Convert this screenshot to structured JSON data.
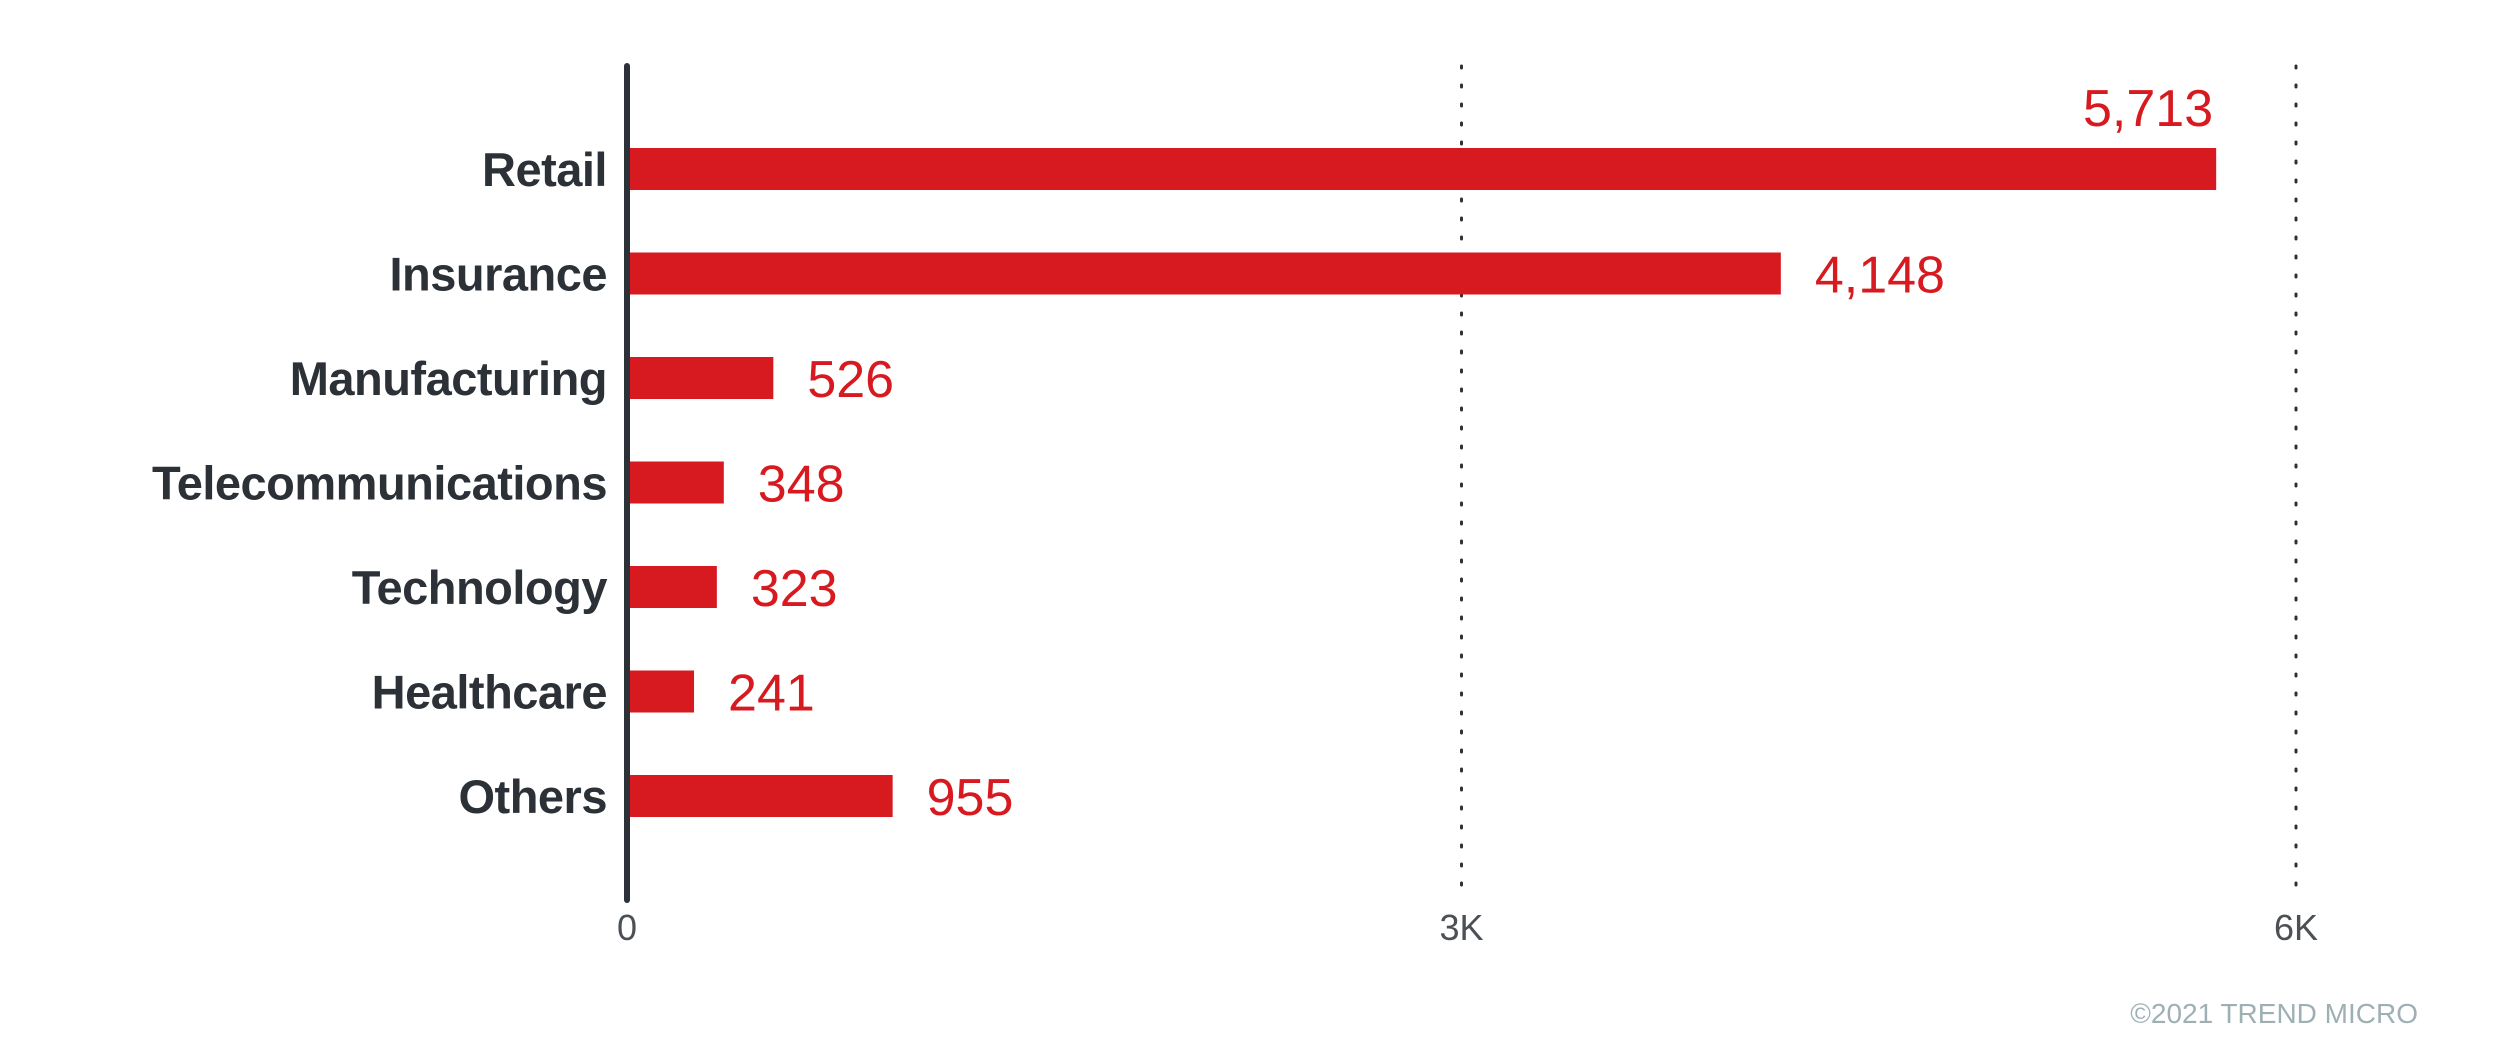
{
  "chart_data": {
    "type": "bar",
    "orientation": "horizontal",
    "categories": [
      "Retail",
      "Insurance",
      "Manufacturing",
      "Telecommunications",
      "Technology",
      "Healthcare",
      "Others"
    ],
    "values": [
      5713,
      4148,
      526,
      348,
      323,
      241,
      955
    ],
    "value_labels": [
      "5,713",
      "4,148",
      "526",
      "348",
      "323",
      "241",
      "955"
    ],
    "xlim": [
      0,
      6000
    ],
    "xticks": [
      0,
      3000,
      6000
    ],
    "xtick_labels": [
      "0",
      "3K",
      "6K"
    ],
    "grid": "vertical dotted",
    "bar_color": "#d71920",
    "title": "",
    "xlabel": "",
    "ylabel": ""
  },
  "footer": {
    "copyright": "©2021 TREND MICRO"
  }
}
